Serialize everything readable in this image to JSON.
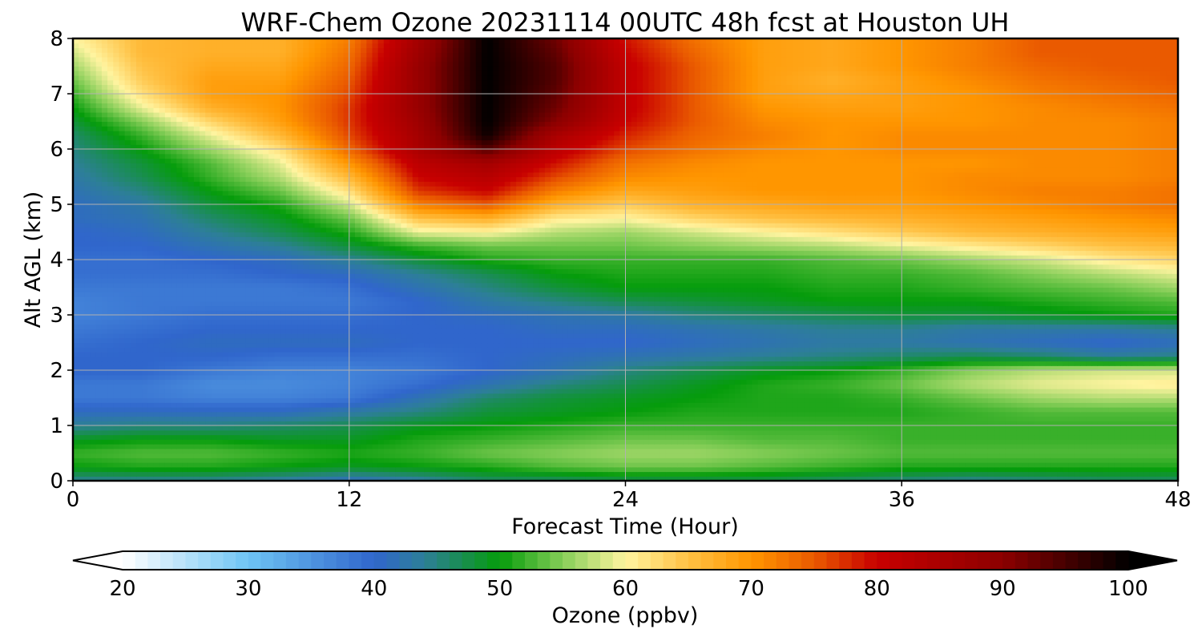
{
  "chart_data": {
    "type": "heatmap",
    "title": "WRF-Chem Ozone  20231114 00UTC 48h fcst at Houston UH",
    "xlabel": "Forecast Time (Hour)",
    "ylabel": "Alt AGL (km)",
    "xlim": [
      0,
      48
    ],
    "ylim": [
      0,
      8
    ],
    "xticks": [
      "0",
      "12",
      "24",
      "36",
      "48"
    ],
    "yticks": [
      "0",
      "1",
      "2",
      "3",
      "4",
      "5",
      "6",
      "7",
      "8"
    ],
    "grid": true,
    "x": [
      0,
      3,
      6,
      9,
      12,
      15,
      18,
      21,
      24,
      27,
      30,
      33,
      36,
      39,
      42,
      45,
      48
    ],
    "y": [
      0,
      0.25,
      0.5,
      0.75,
      1,
      1.25,
      1.5,
      1.75,
      2,
      2.25,
      2.5,
      2.75,
      3,
      3.25,
      3.5,
      3.75,
      4,
      4.25,
      4.5,
      4.75,
      5,
      5.25,
      5.5,
      5.75,
      6,
      6.25,
      6.5,
      6.75,
      7,
      7.25,
      7.5,
      7.75,
      8
    ],
    "z": [
      [
        44,
        44,
        44,
        43,
        41,
        43,
        46,
        46,
        47,
        47,
        47,
        46,
        45,
        44,
        45,
        46,
        46
      ],
      [
        50,
        51,
        51,
        50,
        49,
        50,
        51,
        53,
        54,
        54,
        53,
        52,
        51,
        51,
        51,
        51,
        51
      ],
      [
        52,
        53,
        53,
        52,
        51,
        52,
        54,
        55,
        56,
        56,
        55,
        54,
        53,
        53,
        53,
        53,
        53
      ],
      [
        49,
        50,
        50,
        49,
        49,
        51,
        52,
        53,
        54,
        54,
        53,
        53,
        52,
        52,
        52,
        52,
        52
      ],
      [
        44,
        45,
        45,
        46,
        47,
        49,
        50,
        51,
        52,
        52,
        52,
        52,
        52,
        52,
        52,
        52,
        52
      ],
      [
        41,
        41,
        41,
        41,
        43,
        45,
        48,
        49,
        50,
        51,
        51,
        51,
        51,
        52,
        53,
        53,
        53
      ],
      [
        38,
        38,
        37,
        37,
        38,
        42,
        46,
        48,
        49,
        50,
        51,
        51,
        52,
        54,
        56,
        57,
        57
      ],
      [
        38,
        38,
        36,
        36,
        37,
        39,
        42,
        45,
        47,
        49,
        51,
        52,
        54,
        57,
        59,
        60,
        61
      ],
      [
        40,
        40,
        38,
        37,
        37,
        38,
        40,
        42,
        45,
        47,
        49,
        50,
        52,
        55,
        57,
        58,
        58
      ],
      [
        40,
        40,
        40,
        39,
        39,
        39,
        40,
        41,
        42,
        43,
        44,
        45,
        46,
        47,
        46,
        44,
        45
      ],
      [
        39,
        40,
        41,
        41,
        41,
        40,
        40,
        40,
        40,
        41,
        42,
        43,
        43,
        42,
        41,
        40,
        41
      ],
      [
        38,
        39,
        40,
        40,
        40,
        40,
        40,
        41,
        41,
        42,
        43,
        44,
        44,
        43,
        43,
        43,
        44
      ],
      [
        37,
        38,
        39,
        39,
        39,
        40,
        41,
        42,
        43,
        45,
        46,
        47,
        48,
        48,
        49,
        50,
        51
      ],
      [
        37,
        38,
        38,
        38,
        38,
        40,
        43,
        45,
        47,
        48,
        49,
        50,
        50,
        50,
        51,
        52,
        53
      ],
      [
        38,
        38,
        38,
        38,
        39,
        42,
        45,
        48,
        50,
        50,
        50,
        51,
        51,
        52,
        53,
        54,
        56
      ],
      [
        39,
        39,
        39,
        40,
        41,
        44,
        47,
        50,
        51,
        51,
        51,
        52,
        52,
        53,
        55,
        57,
        59
      ],
      [
        39,
        39,
        40,
        41,
        44,
        48,
        51,
        52,
        52,
        52,
        52,
        53,
        54,
        56,
        58,
        61,
        63
      ],
      [
        40,
        40,
        42,
        44,
        48,
        52,
        54,
        54,
        54,
        55,
        56,
        57,
        59,
        61,
        63,
        65,
        66
      ],
      [
        40,
        41,
        44,
        47,
        51,
        59,
        60,
        57,
        56,
        58,
        60,
        62,
        64,
        66,
        67,
        68,
        69
      ],
      [
        41,
        42,
        46,
        49,
        54,
        65,
        67,
        61,
        60,
        63,
        65,
        66,
        67,
        68,
        69,
        70,
        71
      ],
      [
        41,
        43,
        48,
        51,
        58,
        72,
        75,
        67,
        64,
        67,
        68,
        69,
        69,
        70,
        71,
        72,
        73
      ],
      [
        42,
        45,
        50,
        54,
        62,
        77,
        80,
        72,
        68,
        69,
        70,
        70,
        70,
        71,
        72,
        72,
        73
      ],
      [
        43,
        47,
        52,
        57,
        66,
        80,
        83,
        76,
        71,
        70,
        70,
        70,
        70,
        71,
        71,
        71,
        72
      ],
      [
        44,
        48,
        53,
        59,
        70,
        82,
        86,
        79,
        73,
        71,
        70,
        70,
        70,
        70,
        71,
        71,
        72
      ],
      [
        45,
        50,
        56,
        62,
        74,
        85,
        94,
        82,
        76,
        73,
        71,
        70,
        71,
        71,
        71,
        71,
        72
      ],
      [
        46,
        52,
        59,
        66,
        76,
        86,
        99,
        85,
        78,
        74,
        72,
        70,
        71,
        71,
        71,
        71,
        72
      ],
      [
        48,
        55,
        63,
        69,
        77,
        87,
        100,
        90,
        80,
        75,
        71,
        70,
        70,
        70,
        71,
        71,
        72
      ],
      [
        50,
        59,
        67,
        70,
        77,
        88,
        100,
        92,
        81,
        75,
        70,
        69,
        69,
        70,
        71,
        72,
        73
      ],
      [
        52,
        62,
        69,
        70,
        76,
        88,
        100,
        93,
        81,
        75,
        69,
        68,
        69,
        70,
        72,
        73,
        74
      ],
      [
        54,
        64,
        69,
        69,
        75,
        88,
        100,
        94,
        81,
        75,
        69,
        67,
        69,
        71,
        73,
        74,
        75
      ],
      [
        56,
        65,
        68,
        68,
        74,
        88,
        100,
        94,
        81,
        75,
        69,
        68,
        70,
        72,
        74,
        75,
        75
      ],
      [
        58,
        66,
        67,
        67,
        73,
        87,
        100,
        93,
        80,
        74,
        69,
        68,
        70,
        72,
        75,
        75,
        75
      ],
      [
        60,
        66,
        67,
        67,
        72,
        86,
        100,
        92,
        79,
        73,
        69,
        68,
        70,
        72,
        75,
        75,
        75
      ]
    ],
    "colorbar": {
      "label": "Ozone  (ppbv)",
      "min": 20,
      "max": 100,
      "ticks": [
        "20",
        "30",
        "40",
        "50",
        "60",
        "70",
        "80",
        "90",
        "100"
      ],
      "extend": "both",
      "stops": [
        {
          "v": 20,
          "c": "#ffffff"
        },
        {
          "v": 30,
          "c": "#6ec4f4"
        },
        {
          "v": 40,
          "c": "#3066cc"
        },
        {
          "v": 44,
          "c": "#2d7f97"
        },
        {
          "v": 50,
          "c": "#059c0b"
        },
        {
          "v": 55,
          "c": "#86ce58"
        },
        {
          "v": 60,
          "c": "#fff4a0"
        },
        {
          "v": 65,
          "c": "#ffc144"
        },
        {
          "v": 70,
          "c": "#ff9600"
        },
        {
          "v": 75,
          "c": "#ea5a00"
        },
        {
          "v": 80,
          "c": "#c80000"
        },
        {
          "v": 90,
          "c": "#8c0000"
        },
        {
          "v": 100,
          "c": "#000000"
        }
      ]
    }
  }
}
